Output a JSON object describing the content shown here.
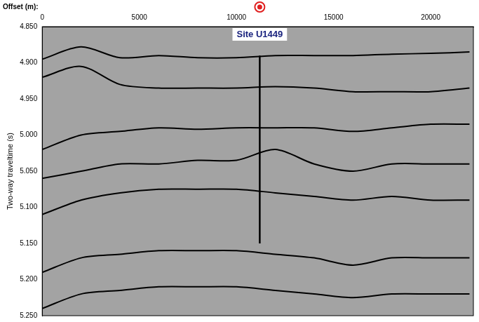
{
  "chart_data": {
    "type": "line",
    "title": "Offset (m):",
    "y_label": "Two-way traveltime (s)",
    "x": [
      0,
      2000,
      4000,
      6000,
      8000,
      10000,
      12000,
      14000,
      16000,
      18000,
      20000,
      22000
    ],
    "series": [
      {
        "color": "#000000",
        "values": [
          4.895,
          4.878,
          4.893,
          4.89,
          4.893,
          4.893,
          4.89,
          4.89,
          4.89,
          4.888,
          4.887,
          4.885
        ]
      },
      {
        "color": "#000000",
        "values": [
          4.92,
          4.905,
          4.93,
          4.935,
          4.935,
          4.935,
          4.933,
          4.935,
          4.94,
          4.94,
          4.94,
          4.935
        ]
      },
      {
        "color": "#000000",
        "values": [
          5.02,
          5.0,
          4.995,
          4.99,
          4.992,
          4.99,
          4.99,
          4.99,
          4.995,
          4.99,
          4.985,
          4.985
        ]
      },
      {
        "color": "#000000",
        "values": [
          5.06,
          5.05,
          5.04,
          5.04,
          5.035,
          5.035,
          5.02,
          5.04,
          5.05,
          5.04,
          5.04,
          5.04
        ]
      },
      {
        "color": "#000000",
        "values": [
          5.11,
          5.09,
          5.08,
          5.075,
          5.075,
          5.075,
          5.08,
          5.085,
          5.09,
          5.085,
          5.09,
          5.09
        ]
      },
      {
        "color": "#000000",
        "values": [
          5.19,
          5.17,
          5.165,
          5.16,
          5.16,
          5.16,
          5.165,
          5.17,
          5.18,
          5.17,
          5.17,
          5.17
        ]
      },
      {
        "color": "#000000",
        "values": [
          5.24,
          5.22,
          5.215,
          5.21,
          5.21,
          5.21,
          5.215,
          5.22,
          5.225,
          5.22,
          5.22,
          5.22
        ]
      }
    ],
    "xlim": [
      0,
      22200
    ],
    "xticks": [
      0,
      5000,
      10000,
      15000,
      20000
    ],
    "ylim": [
      4.85,
      5.25
    ],
    "yticks": [
      {
        "value": 4.85,
        "label": "4.850"
      },
      {
        "value": 4.9,
        "label": "4.900"
      },
      {
        "value": 4.95,
        "label": "4.950"
      },
      {
        "value": 5.0,
        "label": "5.000"
      },
      {
        "value": 5.05,
        "label": "5.050"
      },
      {
        "value": 5.1,
        "label": "5.100"
      },
      {
        "value": 5.15,
        "label": "5.150"
      },
      {
        "value": 5.2,
        "label": "5.200"
      },
      {
        "value": 5.25,
        "label": "5.250"
      }
    ],
    "grid": false,
    "annotations": [
      {
        "type": "site",
        "label": "Site U1449",
        "x": 11200,
        "color": "#e02020"
      },
      {
        "type": "borehole",
        "x": 11200,
        "y": [
          4.89,
          5.15
        ],
        "color": "#000000"
      }
    ]
  }
}
